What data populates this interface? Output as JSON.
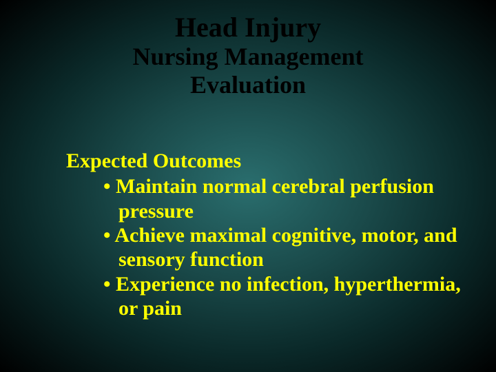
{
  "background": {
    "gradient_center": "#2a6e6e",
    "gradient_mid": "#1a4a4a",
    "gradient_outer": "#0a2828",
    "gradient_edge": "#000000"
  },
  "title": {
    "line1": "Head Injury",
    "line2": "Nursing Management",
    "line3": "Evaluation",
    "color": "#000000",
    "font_family": "Times New Roman",
    "font_weight": "bold",
    "line1_fontsize": 40,
    "line2_fontsize": 36,
    "line3_fontsize": 36
  },
  "section": {
    "heading": "Expected Outcomes",
    "heading_color": "#ffff00",
    "heading_fontsize": 30,
    "bullets": [
      "• Maintain normal cerebral perfusion pressure",
      "• Achieve maximal cognitive, motor, and sensory function",
      "• Experience no infection, hyperthermia, or pain"
    ],
    "bullet_color": "#ffff00",
    "bullet_fontsize": 30
  }
}
